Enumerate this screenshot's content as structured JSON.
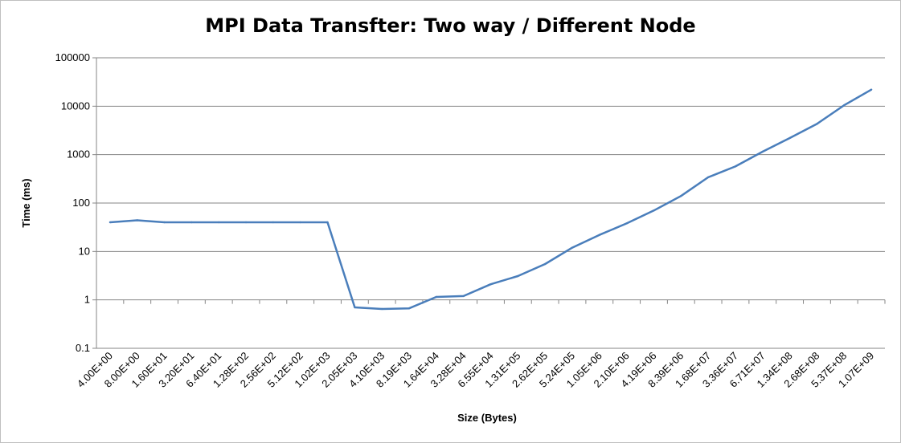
{
  "chart_data": {
    "type": "line",
    "title": "MPI Data Transfter: Two way / Different Node",
    "xlabel": "Size (Bytes)",
    "ylabel": "Time (ms)",
    "yscale": "log",
    "ylim": [
      0.1,
      100000
    ],
    "yticks": [
      "0.1",
      "1",
      "10",
      "100",
      "1000",
      "10000",
      "100000"
    ],
    "grid": "horizontal",
    "legend": "none",
    "color": "#4a7ebb",
    "categories": [
      "4.00E+00",
      "8.00E+00",
      "1.60E+01",
      "3.20E+01",
      "6.40E+01",
      "1.28E+02",
      "2.56E+02",
      "5.12E+02",
      "1.02E+03",
      "2.05E+03",
      "4.10E+03",
      "8.19E+03",
      "1.64E+04",
      "3.28E+04",
      "6.55E+04",
      "1.31E+05",
      "2.62E+05",
      "5.24E+05",
      "1.05E+06",
      "2.10E+06",
      "4.19E+06",
      "8.39E+06",
      "1.68E+07",
      "3.36E+07",
      "6.71E+07",
      "1.34E+08",
      "2.68E+08",
      "5.37E+08",
      "1.07E+09"
    ],
    "values": [
      40,
      44,
      40,
      40,
      40,
      40,
      40,
      40,
      40,
      0.7,
      0.65,
      0.67,
      1.15,
      1.2,
      2.1,
      3.1,
      5.5,
      12,
      22,
      38,
      70,
      140,
      340,
      570,
      1150,
      2200,
      4300,
      10500,
      22000
    ]
  }
}
